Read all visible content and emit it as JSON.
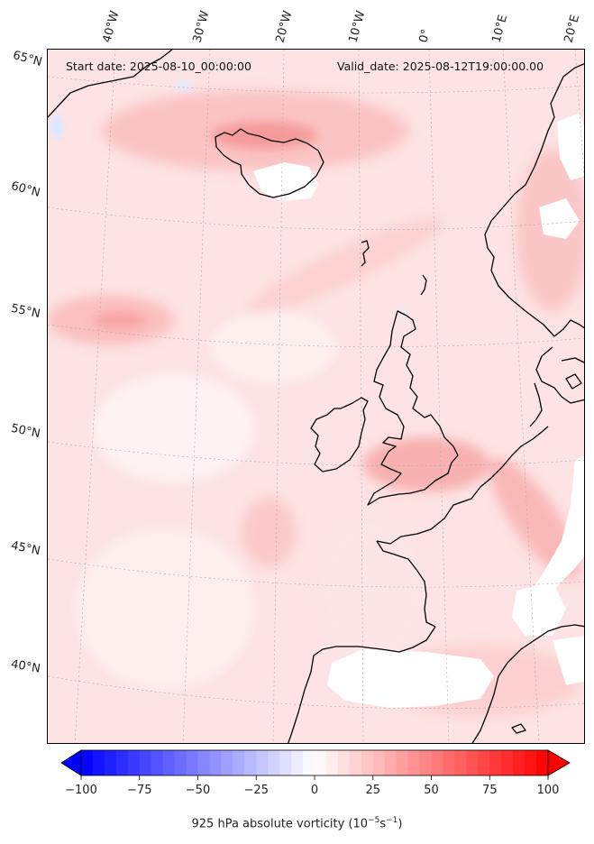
{
  "header": {
    "start_date": "Start date: 2025-08-10_00:00:00",
    "valid_date": "Valid_date: 2025-08-12T19:00:00.00"
  },
  "map": {
    "lon_labels": [
      "40°W",
      "30°W",
      "20°W",
      "10°W",
      "0°",
      "10°E",
      "20°E"
    ],
    "lat_labels": [
      "65°N",
      "60°N",
      "55°N",
      "50°N",
      "45°N",
      "40°N"
    ],
    "field_colors": {
      "background": "#fde7e7",
      "low": "#fff4f4",
      "mid": "#fcc7c7",
      "high": "#f77b7b",
      "negative": "#e8ecff",
      "land_blank": "#ffffff"
    }
  },
  "colorbar": {
    "min": -100,
    "max": 100,
    "ticks": [
      "−100",
      "−75",
      "−50",
      "−25",
      "0",
      "25",
      "50",
      "75",
      "100"
    ],
    "colormap": "bwr",
    "low_color": "#0000ff",
    "mid_color": "#ffffff",
    "high_color": "#ff0000",
    "extend": "both",
    "label": "925 hPa absolute vorticity (10",
    "label_exp1": "−5",
    "label_mid": "s",
    "label_exp2": "−1",
    "label_end": ")"
  }
}
